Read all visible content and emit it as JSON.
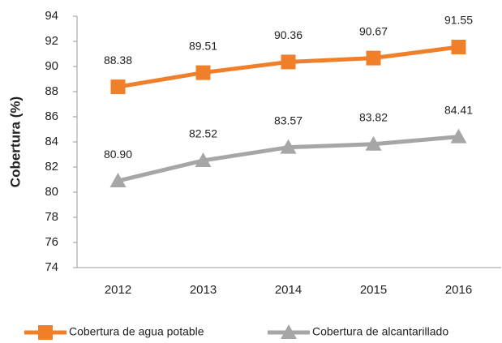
{
  "chart_data": {
    "type": "line",
    "y_label": "Cobertura (%)",
    "categories": [
      "2012",
      "2013",
      "2014",
      "2015",
      "2016"
    ],
    "series": [
      {
        "name": "Cobertura de agua potable",
        "color": "#f07f2a",
        "marker": "square",
        "values": [
          88.38,
          89.51,
          90.36,
          90.67,
          91.55
        ],
        "value_labels": [
          "88.38",
          "89.51",
          "90.36",
          "90.67",
          "91.55"
        ]
      },
      {
        "name": "Cobertura de alcantarillado",
        "color": "#a6a6a6",
        "marker": "triangle",
        "values": [
          80.9,
          82.52,
          83.57,
          83.82,
          84.41
        ],
        "value_labels": [
          "80.90",
          "82.52",
          "83.57",
          "83.82",
          "84.41"
        ]
      }
    ],
    "ylim": [
      74,
      94
    ],
    "yticks": [
      74,
      76,
      78,
      80,
      82,
      84,
      86,
      88,
      90,
      92,
      94
    ],
    "grid": false,
    "legend": "bottom"
  }
}
